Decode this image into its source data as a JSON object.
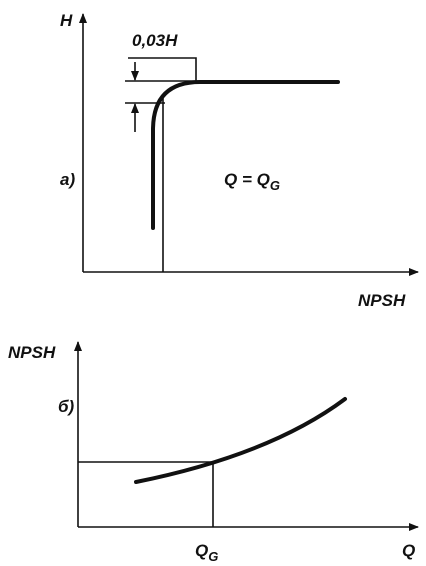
{
  "top": {
    "y_label": "H",
    "tolerance": "0,03H",
    "panel": "a)",
    "condition": {
      "main": "Q = Q",
      "sub": "G"
    },
    "x_label": "NPSH"
  },
  "bottom": {
    "y_label": "NPSH",
    "panel": "б)",
    "marker": {
      "main": "Q",
      "sub": "G"
    },
    "x_label": "Q"
  }
}
